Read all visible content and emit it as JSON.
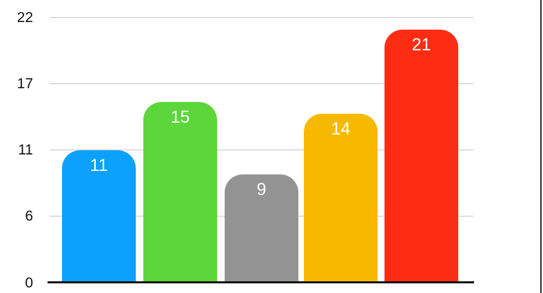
{
  "chart_data": {
    "type": "bar",
    "title": "",
    "values": [
      11,
      15,
      9,
      14,
      21
    ],
    "bar_labels": [
      "11",
      "15",
      "9",
      "14",
      "21"
    ],
    "bar_colors": [
      "#0BA1FC",
      "#5CD63A",
      "#939393",
      "#F7B900",
      "#FC2D12"
    ],
    "bar_label_color": "#FFFFFF",
    "y_axis": {
      "ticks": [
        {
          "label": "22",
          "value": 22
        },
        {
          "label": "17",
          "value": 16.5
        },
        {
          "label": "11",
          "value": 11
        },
        {
          "label": "6",
          "value": 5.5
        },
        {
          "label": "0",
          "value": 0
        }
      ],
      "range": [
        0,
        22
      ]
    },
    "grid": true,
    "legend": "none",
    "gridline_color": "#C4C4C4",
    "axis_color": "#111111"
  }
}
